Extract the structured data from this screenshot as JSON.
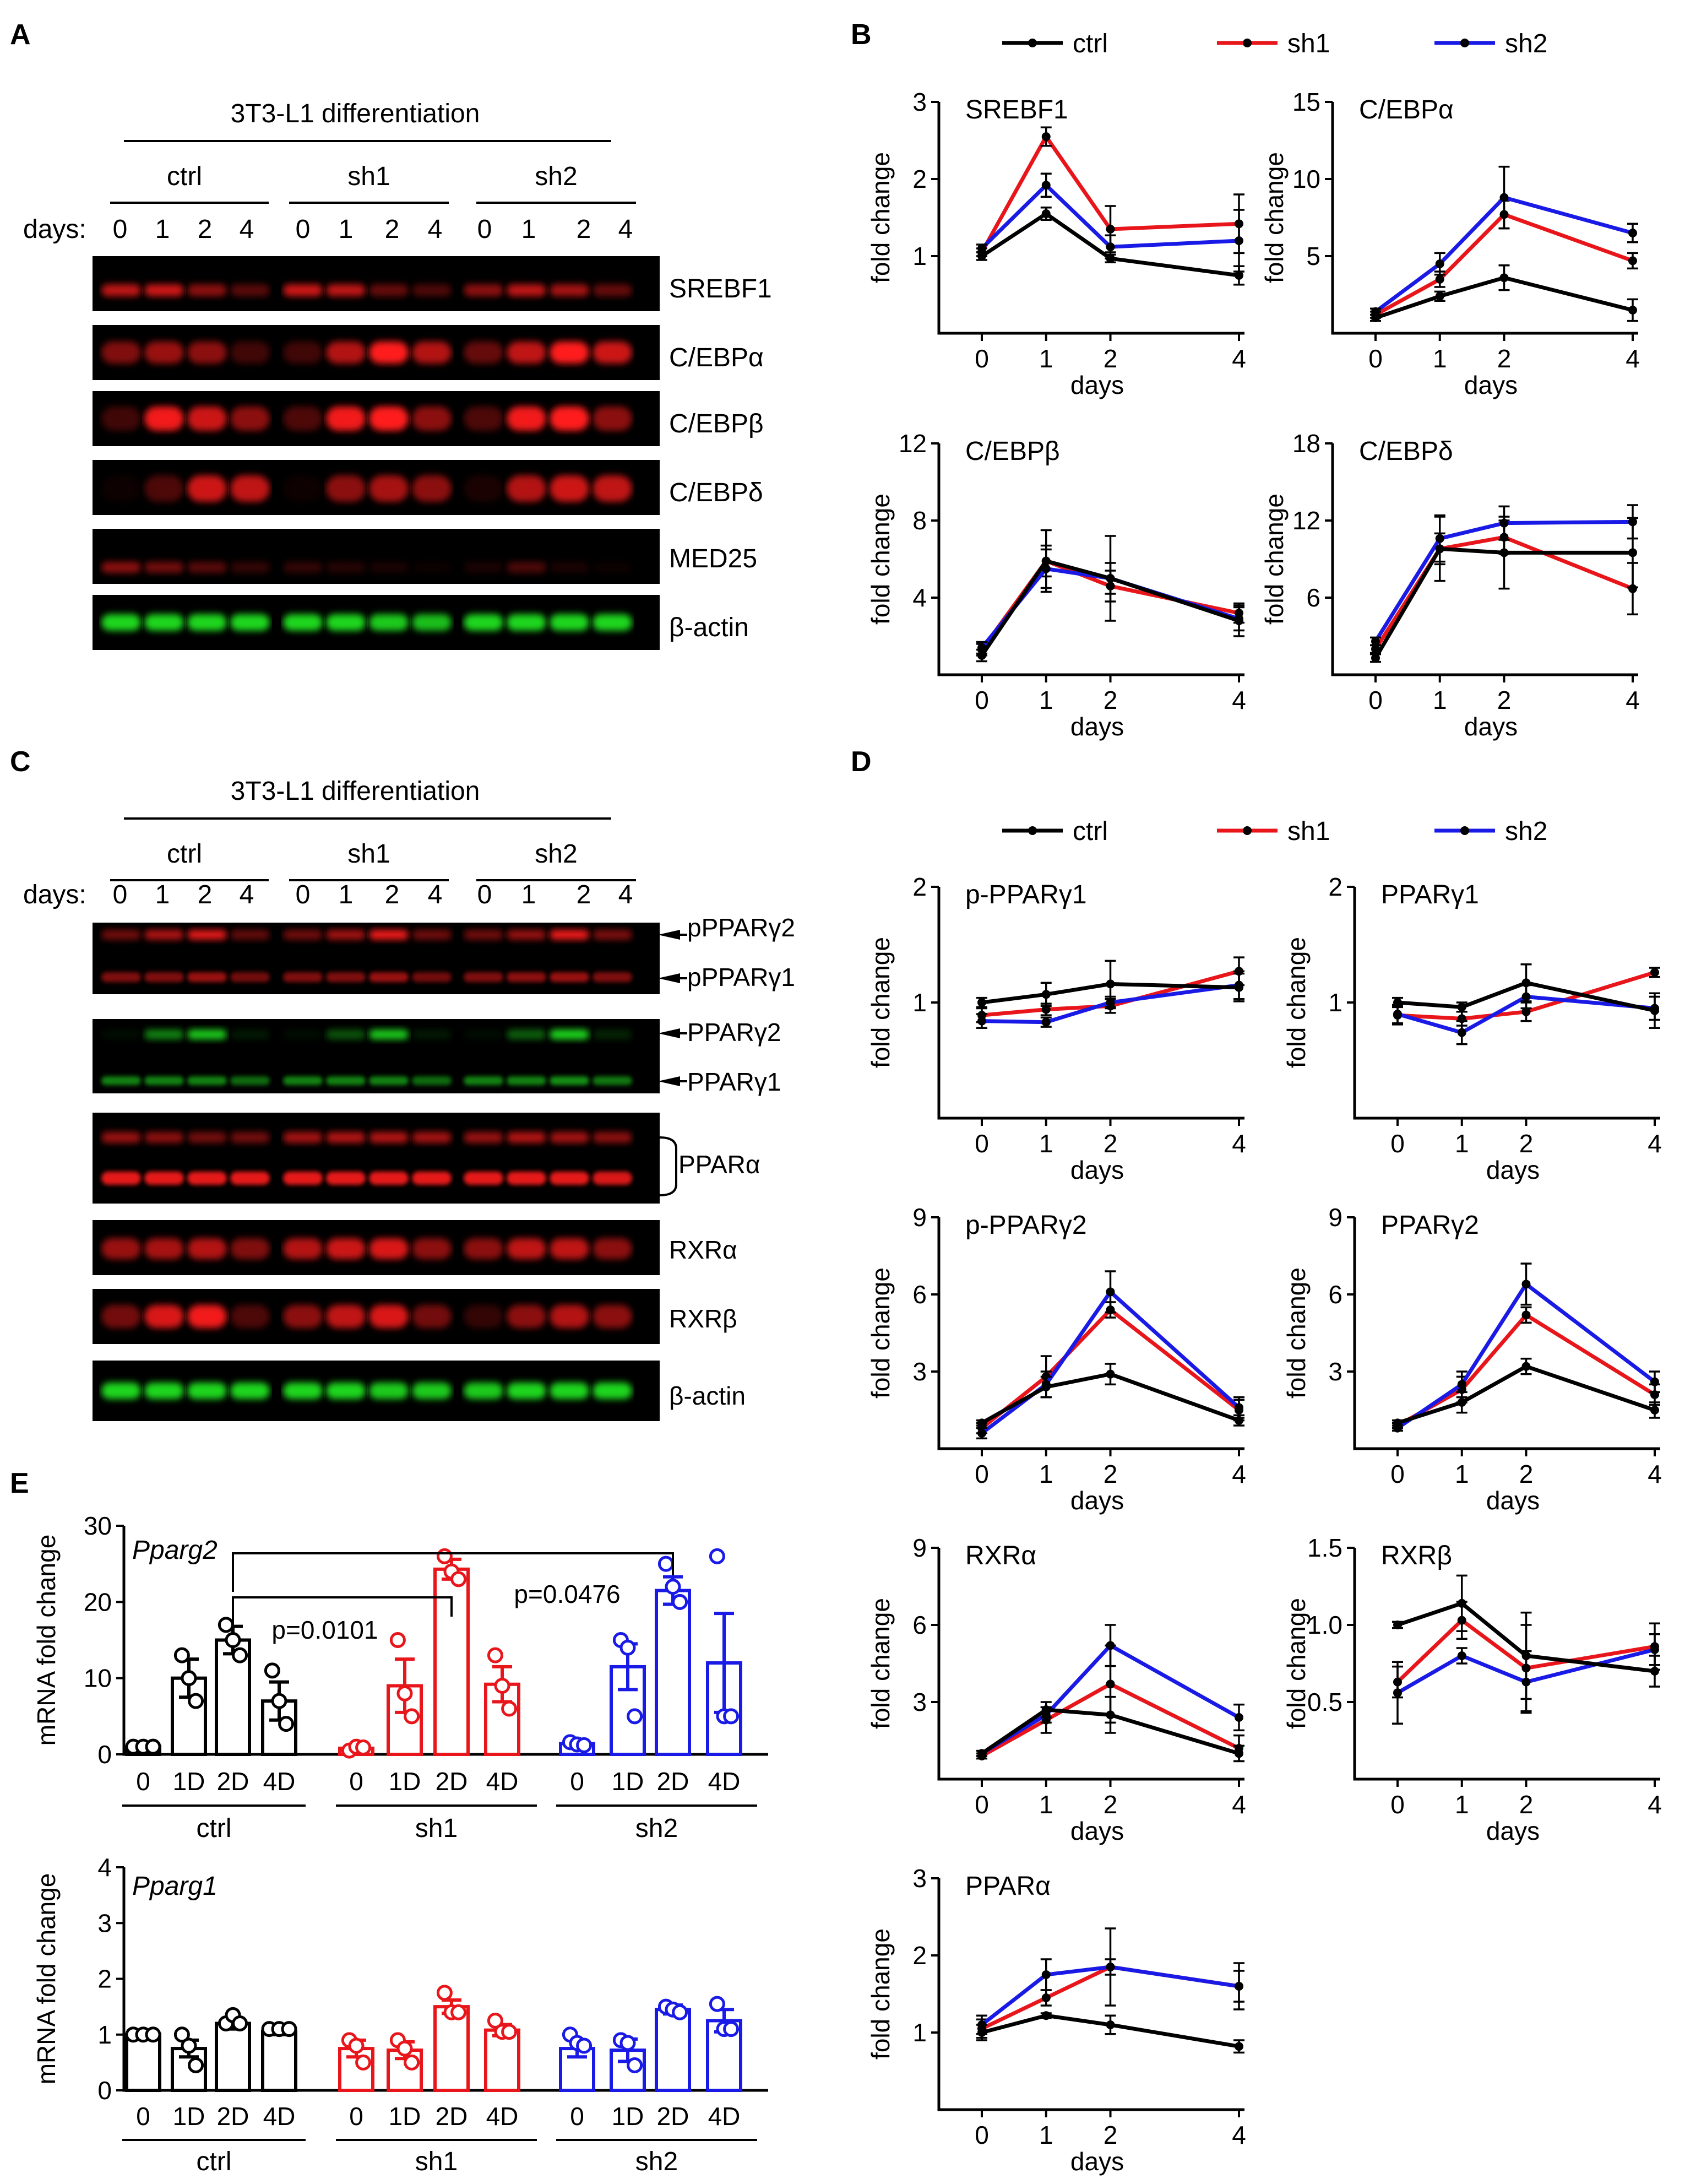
{
  "panel_labels": {
    "a": "A",
    "b": "B",
    "c": "C",
    "d": "D",
    "e": "E"
  },
  "colors": {
    "ctrl": "#000000",
    "sh1": "#e8161b",
    "sh2": "#1a1ae6",
    "red_band": "#ff1a1a",
    "green_band": "#22ee22"
  },
  "blotA": {
    "title": "3T3-L1 differentiation",
    "groups": [
      "ctrl",
      "sh1",
      "sh2"
    ],
    "days_label": "days:",
    "days": [
      "0",
      "1",
      "2",
      "4",
      "0",
      "1",
      "2",
      "4",
      "0",
      "1",
      "2",
      "4"
    ],
    "bands": [
      {
        "label": "SREBF1",
        "color": "red"
      },
      {
        "label": "C/EBPα",
        "color": "red"
      },
      {
        "label": "C/EBPβ",
        "color": "red"
      },
      {
        "label": "C/EBPδ",
        "color": "red"
      },
      {
        "label": "MED25",
        "color": "red"
      },
      {
        "label": "β-actin",
        "color": "green"
      }
    ]
  },
  "blotC": {
    "title": "3T3-L1 differentiation",
    "groups": [
      "ctrl",
      "sh1",
      "sh2"
    ],
    "days_label": "days:",
    "days": [
      "0",
      "1",
      "2",
      "4",
      "0",
      "1",
      "2",
      "4",
      "0",
      "1",
      "2",
      "4"
    ],
    "labels": {
      "ppparg2": "pPPARγ2",
      "ppparg1": "pPPARγ1",
      "pparg2": "PPARγ2",
      "pparg1": "PPARγ1",
      "ppara": "PPARα",
      "rxra": "RXRα",
      "rxrb": "RXRβ",
      "actin": "β-actin"
    }
  },
  "legend": {
    "ctrl": "ctrl",
    "sh1": "sh1",
    "sh2": "sh2"
  },
  "chart_data": [
    {
      "id": "B1",
      "type": "line",
      "title": "SREBF1",
      "xlabel": "days",
      "ylabel": "fold change",
      "x": [
        0,
        1,
        2,
        4
      ],
      "ylim": [
        0,
        3
      ],
      "yticks": [
        "1",
        "2",
        "3"
      ],
      "ytick_values": [
        1,
        2,
        3
      ],
      "series": [
        {
          "name": "ctrl",
          "values": [
            1.0,
            1.55,
            0.97,
            0.75
          ],
          "err": [
            0.05,
            0.08,
            0.05,
            0.12
          ]
        },
        {
          "name": "sh1",
          "values": [
            1.05,
            2.55,
            1.35,
            1.42
          ],
          "err": [
            0.05,
            0.12,
            0.3,
            0.38
          ]
        },
        {
          "name": "sh2",
          "values": [
            1.1,
            1.92,
            1.12,
            1.2
          ],
          "err": [
            0.05,
            0.15,
            0.15,
            0.4
          ]
        }
      ]
    },
    {
      "id": "B2",
      "type": "line",
      "title": "C/EBPα",
      "xlabel": "days",
      "ylabel": "fold change",
      "x": [
        0,
        1,
        2,
        4
      ],
      "ylim": [
        0,
        15
      ],
      "yticks": [
        "5",
        "10",
        "15"
      ],
      "ytick_values": [
        5,
        10,
        15
      ],
      "series": [
        {
          "name": "ctrl",
          "values": [
            1.0,
            2.4,
            3.6,
            1.5
          ],
          "err": [
            0.2,
            0.3,
            0.8,
            0.7
          ]
        },
        {
          "name": "sh1",
          "values": [
            1.2,
            3.5,
            7.7,
            4.7
          ],
          "err": [
            0.2,
            0.5,
            0.9,
            0.5
          ]
        },
        {
          "name": "sh2",
          "values": [
            1.4,
            4.5,
            8.8,
            6.5
          ],
          "err": [
            0.2,
            0.7,
            2.0,
            0.6
          ]
        }
      ]
    },
    {
      "id": "B3",
      "type": "line",
      "title": "C/EBPβ",
      "xlabel": "days",
      "ylabel": "fold change",
      "x": [
        0,
        1,
        2,
        4
      ],
      "ylim": [
        0,
        12
      ],
      "yticks": [
        "4",
        "8",
        "12"
      ],
      "ytick_values": [
        4,
        8,
        12
      ],
      "series": [
        {
          "name": "ctrl",
          "values": [
            1.0,
            5.9,
            5.0,
            2.8
          ],
          "err": [
            0.3,
            1.6,
            2.2,
            0.8
          ]
        },
        {
          "name": "sh1",
          "values": [
            1.3,
            5.9,
            4.6,
            3.2
          ],
          "err": [
            0.3,
            0.8,
            0.8,
            0.5
          ]
        },
        {
          "name": "sh2",
          "values": [
            1.4,
            5.5,
            5.0,
            2.9
          ],
          "err": [
            0.3,
            1.0,
            0.8,
            0.6
          ]
        }
      ]
    },
    {
      "id": "B4",
      "type": "line",
      "title": "C/EBPδ",
      "xlabel": "days",
      "ylabel": "fold change",
      "x": [
        0,
        1,
        2,
        4
      ],
      "ylim": [
        0,
        18
      ],
      "yticks": [
        "6",
        "12",
        "18"
      ],
      "ytick_values": [
        6,
        12,
        18
      ],
      "series": [
        {
          "name": "ctrl",
          "values": [
            1.3,
            9.8,
            9.5,
            9.5
          ],
          "err": [
            0.3,
            2.5,
            2.8,
            2.7
          ]
        },
        {
          "name": "sh1",
          "values": [
            2.0,
            9.8,
            10.7,
            6.7
          ],
          "err": [
            0.3,
            1.2,
            1.3,
            2.0
          ]
        },
        {
          "name": "sh2",
          "values": [
            2.6,
            10.6,
            11.8,
            11.9
          ],
          "err": [
            0.3,
            1.8,
            1.3,
            1.3
          ]
        }
      ]
    },
    {
      "id": "D1",
      "type": "line",
      "title": "p-PPARγ1",
      "xlabel": "days",
      "ylabel": "fold change",
      "x": [
        0,
        1,
        2,
        4
      ],
      "ylim": [
        0,
        2
      ],
      "yticks": [
        "1",
        "2"
      ],
      "ytick_values": [
        1,
        2
      ],
      "series": [
        {
          "name": "ctrl",
          "values": [
            1.0,
            1.07,
            1.16,
            1.13
          ],
          "err": [
            0.04,
            0.1,
            0.2,
            0.12
          ]
        },
        {
          "name": "sh1",
          "values": [
            0.89,
            0.94,
            0.97,
            1.27
          ],
          "err": [
            0.06,
            0.05,
            0.06,
            0.12
          ]
        },
        {
          "name": "sh2",
          "values": [
            0.84,
            0.83,
            1.0,
            1.15
          ],
          "err": [
            0.06,
            0.04,
            0.05,
            0.12
          ]
        }
      ]
    },
    {
      "id": "D2",
      "type": "line",
      "title": "PPARγ1",
      "xlabel": "days",
      "ylabel": "fold change",
      "x": [
        0,
        1,
        2,
        4
      ],
      "ylim": [
        0,
        2
      ],
      "yticks": [
        "1",
        "2"
      ],
      "ytick_values": [
        1,
        2
      ],
      "series": [
        {
          "name": "ctrl",
          "values": [
            1.0,
            0.96,
            1.17,
            0.93
          ],
          "err": [
            0.04,
            0.04,
            0.16,
            0.15
          ]
        },
        {
          "name": "sh1",
          "values": [
            0.89,
            0.86,
            0.92,
            1.26
          ],
          "err": [
            0.08,
            0.06,
            0.08,
            0.04
          ]
        },
        {
          "name": "sh2",
          "values": [
            0.9,
            0.74,
            1.05,
            0.95
          ],
          "err": [
            0.08,
            0.1,
            0.1,
            0.1
          ]
        }
      ]
    },
    {
      "id": "D3",
      "type": "line",
      "title": "p-PPARγ2",
      "xlabel": "days",
      "ylabel": "fold change",
      "x": [
        0,
        1,
        2,
        4
      ],
      "ylim": [
        0,
        9
      ],
      "yticks": [
        "3",
        "6",
        "9"
      ],
      "ytick_values": [
        3,
        6,
        9
      ],
      "series": [
        {
          "name": "ctrl",
          "values": [
            1.0,
            2.4,
            2.9,
            1.1
          ],
          "err": [
            0.1,
            0.4,
            0.4,
            0.2
          ]
        },
        {
          "name": "sh1",
          "values": [
            0.8,
            2.8,
            5.4,
            1.5
          ],
          "err": [
            0.2,
            0.8,
            0.3,
            0.4
          ]
        },
        {
          "name": "sh2",
          "values": [
            0.6,
            2.5,
            6.1,
            1.6
          ],
          "err": [
            0.2,
            0.5,
            0.8,
            0.4
          ]
        }
      ]
    },
    {
      "id": "D4",
      "type": "line",
      "title": "PPARγ2",
      "xlabel": "days",
      "ylabel": "fold change",
      "x": [
        0,
        1,
        2,
        4
      ],
      "ylim": [
        0,
        9
      ],
      "yticks": [
        "3",
        "6",
        "9"
      ],
      "ytick_values": [
        3,
        6,
        9
      ],
      "series": [
        {
          "name": "ctrl",
          "values": [
            1.0,
            1.8,
            3.2,
            1.5
          ],
          "err": [
            0.1,
            0.4,
            0.3,
            0.3
          ]
        },
        {
          "name": "sh1",
          "values": [
            0.9,
            2.3,
            5.2,
            2.1
          ],
          "err": [
            0.1,
            0.5,
            0.3,
            0.4
          ]
        },
        {
          "name": "sh2",
          "values": [
            0.8,
            2.5,
            6.4,
            2.6
          ],
          "err": [
            0.1,
            0.5,
            0.8,
            0.4
          ]
        }
      ]
    },
    {
      "id": "D5",
      "type": "line",
      "title": "RXRα",
      "xlabel": "days",
      "ylabel": "fold change",
      "x": [
        0,
        1,
        2,
        4
      ],
      "ylim": [
        0,
        9
      ],
      "yticks": [
        "3",
        "6",
        "9"
      ],
      "ytick_values": [
        3,
        6,
        9
      ],
      "series": [
        {
          "name": "ctrl",
          "values": [
            1.0,
            2.7,
            2.5,
            1.0
          ],
          "err": [
            0.1,
            0.3,
            0.7,
            0.3
          ]
        },
        {
          "name": "sh1",
          "values": [
            0.9,
            2.3,
            3.7,
            1.2
          ],
          "err": [
            0.1,
            0.5,
            1.5,
            0.5
          ]
        },
        {
          "name": "sh2",
          "values": [
            1.0,
            2.5,
            5.2,
            2.4
          ],
          "err": [
            0.1,
            0.3,
            0.8,
            0.5
          ]
        }
      ]
    },
    {
      "id": "D6",
      "type": "line",
      "title": "RXRβ",
      "xlabel": "days",
      "ylabel": "fold change",
      "x": [
        0,
        1,
        2,
        4
      ],
      "ylim": [
        0,
        1.5
      ],
      "yticks": [
        "0.5",
        "1.0",
        "1.5"
      ],
      "ytick_values": [
        0.5,
        1.0,
        1.5
      ],
      "series": [
        {
          "name": "ctrl",
          "values": [
            1.0,
            1.14,
            0.8,
            0.7
          ],
          "err": [
            0.02,
            0.18,
            0.28,
            0.1
          ]
        },
        {
          "name": "sh1",
          "values": [
            0.63,
            1.03,
            0.72,
            0.86
          ],
          "err": [
            0.1,
            0.12,
            0.28,
            0.15
          ]
        },
        {
          "name": "sh2",
          "values": [
            0.56,
            0.8,
            0.63,
            0.84
          ],
          "err": [
            0.2,
            0.05,
            0.2,
            0.1
          ]
        }
      ]
    },
    {
      "id": "D7",
      "type": "line",
      "title": "PPARα",
      "xlabel": "days",
      "ylabel": "fold change",
      "x": [
        0,
        1,
        2,
        4
      ],
      "ylim": [
        0,
        3
      ],
      "yticks": [
        "1",
        "2",
        "3"
      ],
      "ytick_values": [
        1,
        2,
        3
      ],
      "series": [
        {
          "name": "ctrl",
          "values": [
            1.0,
            1.22,
            1.1,
            0.82
          ],
          "err": [
            0.1,
            0.03,
            0.12,
            0.08
          ]
        },
        {
          "name": "sh1",
          "values": [
            1.05,
            1.45,
            1.85,
            1.6
          ],
          "err": [
            0.12,
            0.1,
            0.5,
            0.2
          ]
        },
        {
          "name": "sh2",
          "values": [
            1.1,
            1.75,
            1.85,
            1.6
          ],
          "err": [
            0.12,
            0.2,
            0.1,
            0.3
          ]
        }
      ]
    },
    {
      "id": "E1",
      "type": "bar",
      "title": "Pparg2",
      "ylabel": "mRNA fold change",
      "ylim": [
        0,
        30
      ],
      "yticks": [
        "0",
        "10",
        "20",
        "30"
      ],
      "ytick_values": [
        0,
        10,
        20,
        30
      ],
      "categories": [
        "0",
        "1D",
        "2D",
        "4D",
        "0",
        "1D",
        "2D",
        "4D",
        "0",
        "1D",
        "2D",
        "4D"
      ],
      "groups": [
        "ctrl",
        "sh1",
        "sh2"
      ],
      "values": [
        1.0,
        10.0,
        15.0,
        7.0,
        0.8,
        9.0,
        24.3,
        9.2,
        1.4,
        11.5,
        21.5,
        12.0
      ],
      "err": [
        0,
        2.5,
        1.8,
        2.5,
        0.3,
        3.5,
        1.3,
        2.3,
        0.3,
        3.0,
        1.8,
        6.5
      ],
      "points": [
        [
          1,
          1,
          1
        ],
        [
          13,
          10,
          7
        ],
        [
          17,
          15,
          13
        ],
        [
          11,
          7,
          4
        ],
        [
          0.5,
          1,
          0.9
        ],
        [
          15,
          8,
          5
        ],
        [
          26,
          24,
          23
        ],
        [
          13,
          9,
          6
        ],
        [
          1.6,
          1.3,
          1.2
        ],
        [
          15,
          14,
          5
        ],
        [
          25,
          22,
          20
        ],
        [
          26,
          5,
          5
        ]
      ],
      "annotations": [
        {
          "text": "p=0.0101",
          "from": 2,
          "to": 6
        },
        {
          "text": "p=0.0476",
          "from": 2,
          "to": 10
        }
      ],
      "group_labels": [
        "ctrl",
        "sh1",
        "sh2"
      ]
    },
    {
      "id": "E2",
      "type": "bar",
      "title": "Pparg1",
      "ylabel": "mRNA fold change",
      "ylim": [
        0,
        4
      ],
      "yticks": [
        "0",
        "1",
        "2",
        "3",
        "4"
      ],
      "ytick_values": [
        0,
        1,
        2,
        3,
        4
      ],
      "categories": [
        "0",
        "1D",
        "2D",
        "4D",
        "0",
        "1D",
        "2D",
        "4D",
        "0",
        "1D",
        "2D",
        "4D"
      ],
      "groups": [
        "ctrl",
        "sh1",
        "sh2"
      ],
      "values": [
        1.0,
        0.75,
        1.2,
        1.05,
        0.75,
        0.72,
        1.5,
        1.08,
        0.75,
        0.72,
        1.45,
        1.25
      ],
      "err": [
        0,
        0.15,
        0.1,
        0.05,
        0.15,
        0.15,
        0.12,
        0.1,
        0.15,
        0.2,
        0.08,
        0.2
      ],
      "points": [
        [
          1,
          1,
          1
        ],
        [
          1.0,
          0.8,
          0.45
        ],
        [
          1.2,
          1.35,
          1.2
        ],
        [
          1.1,
          1.1,
          1.1
        ],
        [
          0.9,
          0.8,
          0.5
        ],
        [
          0.9,
          0.75,
          0.5
        ],
        [
          1.75,
          1.4,
          1.4
        ],
        [
          1.25,
          1.05,
          1.05
        ],
        [
          1.0,
          0.85,
          0.8
        ],
        [
          0.9,
          0.85,
          0.45
        ],
        [
          1.5,
          1.45,
          1.4
        ],
        [
          1.55,
          1.1,
          1.1
        ]
      ],
      "group_labels": [
        "ctrl",
        "sh1",
        "sh2"
      ]
    }
  ]
}
